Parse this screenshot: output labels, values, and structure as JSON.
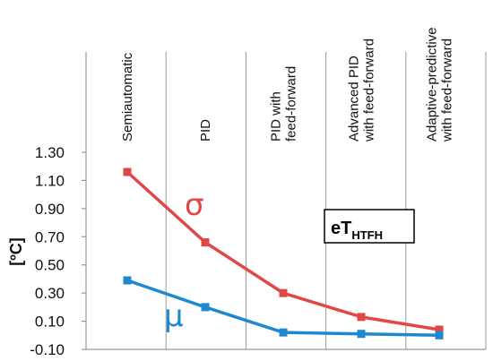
{
  "chart_data": {
    "type": "line",
    "categories": [
      "Semiautomatic",
      "PID",
      "PID with feed-forward",
      "Advanced PID with feed-forward",
      "Adaptive-predictive with feed-forward"
    ],
    "category_label_lines": [
      [
        "Semiautomatic"
      ],
      [
        "PID"
      ],
      [
        "PID with",
        "feed-forward"
      ],
      [
        "Advanced PID",
        "with feed-forward"
      ],
      [
        "Adaptive-predictive",
        "with feed-forward"
      ]
    ],
    "series": [
      {
        "name": "σ",
        "color": "#e04848",
        "marker": "square",
        "values": [
          1.16,
          0.66,
          0.3,
          0.13,
          0.04
        ]
      },
      {
        "name": "μ",
        "color": "#1e88d0",
        "marker": "square",
        "values": [
          0.39,
          0.2,
          0.02,
          0.01,
          0.0
        ]
      }
    ],
    "yticks": [
      "1.30",
      "1.10",
      "0.90",
      "0.70",
      "0.50",
      "0.30",
      "0.10",
      "-0.10"
    ],
    "ylim": [
      -0.1,
      1.3
    ],
    "ylabel": "[ºC]",
    "xlabel": "",
    "title": "",
    "annotation": {
      "main": "eT",
      "subscript": "HTFH"
    },
    "grid": {
      "vertical_category_lines": true,
      "horizontal": false
    },
    "legend": "none",
    "axis_color": "#9a9a9a"
  }
}
